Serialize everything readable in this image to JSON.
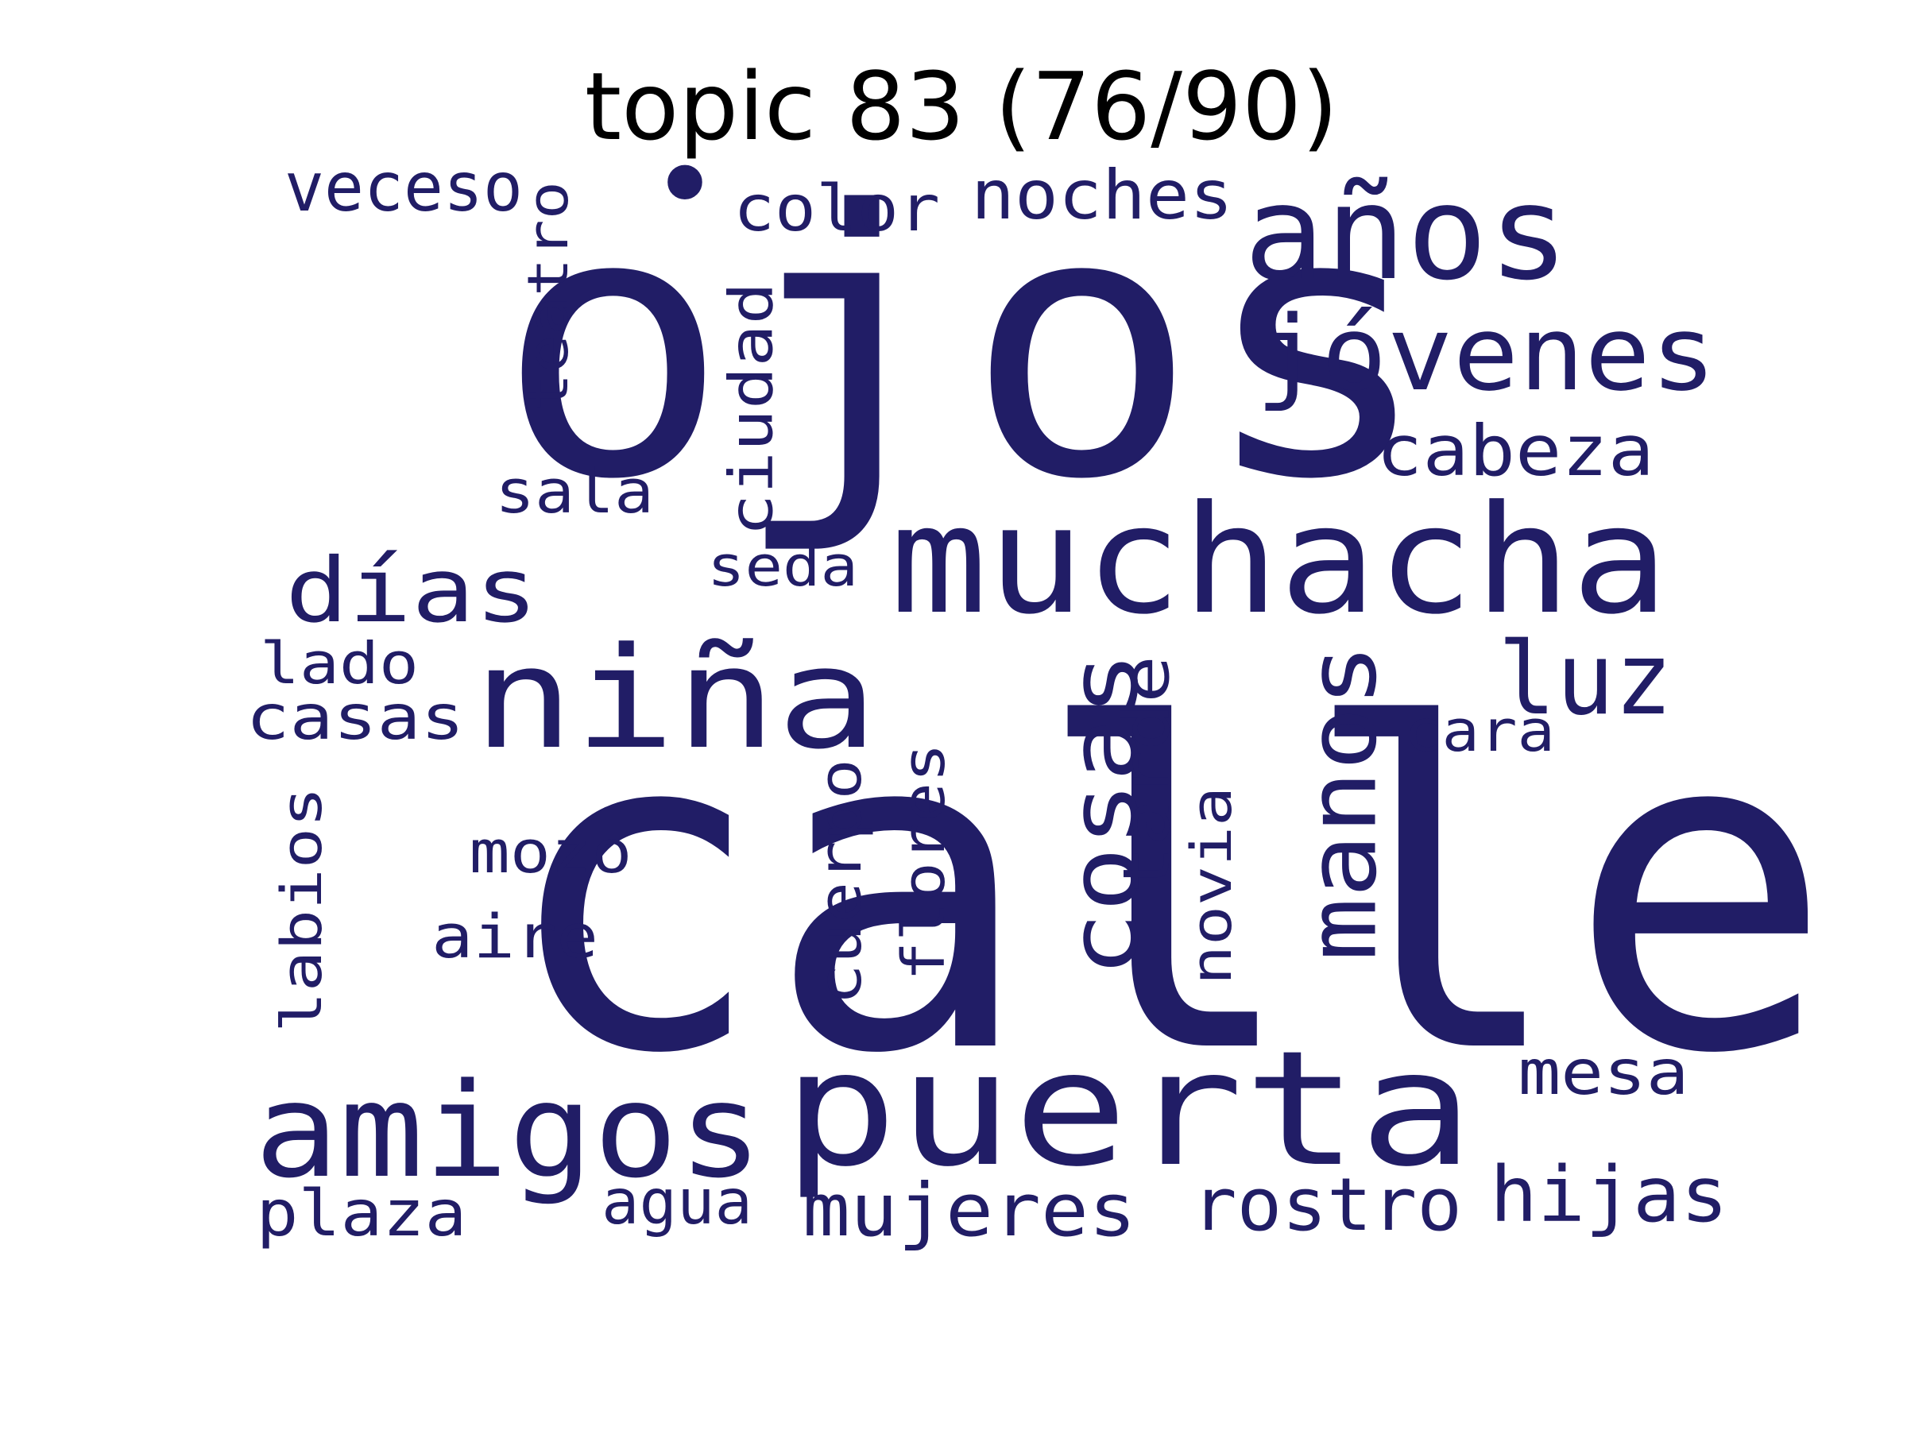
{
  "title": "topic 83 (76/90)",
  "colors": {
    "background": "#ffffff",
    "word": "#211d66",
    "title": "#000000"
  },
  "words": {
    "calle": "calle",
    "ojos": "ojos",
    "puerta": "puerta",
    "muchacha": "muchacha",
    "nina": "niña",
    "amigos": "amigos",
    "anos": "años",
    "jovenes": "jóvenes",
    "cosas": "cosas",
    "manos": "manos",
    "luz": "luz",
    "dias": "días",
    "mujeres": "mujeres",
    "rostro": "rostro",
    "hijas": "hijas",
    "cabeza": "cabeza",
    "noches": "noches",
    "veceso": "veceso",
    "color": "color",
    "tarde": "tarde",
    "ciudad": "ciudad",
    "teatro": "teatro",
    "sala": "sala",
    "seda": "seda",
    "casas": "casas",
    "lado": "lado",
    "cara": "cara",
    "plaza": "plaza",
    "agua": "agua",
    "mesa": "mesa",
    "labios": "labios",
    "mozo": "mozo",
    "aire": "aire",
    "cuerpo": "cuerpo",
    "flores": "flores",
    "novia": "novia",
    "dot": "•"
  }
}
